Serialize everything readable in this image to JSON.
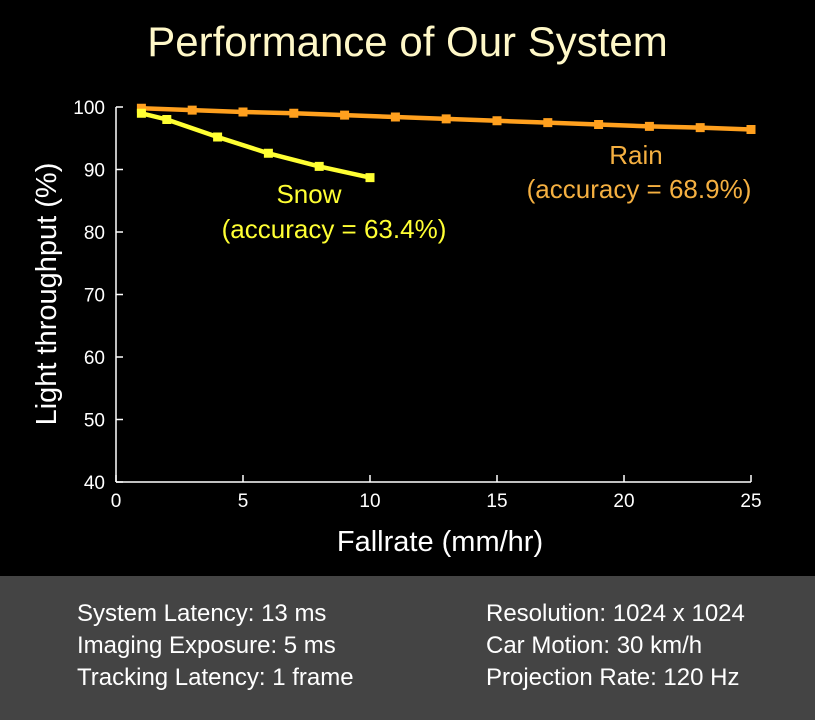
{
  "title": "Performance of Our System",
  "colors": {
    "background": "#000000",
    "title": "#fff8c8",
    "axis": "#ffffff",
    "rain": "#ffa01e",
    "rain_label": "#f5b041",
    "snow": "#ffff33",
    "footer_bg": "#444444",
    "footer_text": "#ffffff"
  },
  "chart_data": {
    "type": "line",
    "title": "Performance of Our System",
    "xlabel": "Fallrate (mm/hr)",
    "ylabel": "Light throughput (%)",
    "xlim": [
      0,
      25
    ],
    "ylim": [
      40,
      100
    ],
    "xticks": [
      0,
      5,
      10,
      15,
      20,
      25
    ],
    "yticks": [
      40,
      50,
      60,
      70,
      80,
      90,
      100
    ],
    "grid": false,
    "legend": "none",
    "series": [
      {
        "name": "Rain",
        "annotation": "(accuracy = 68.9%)",
        "x": [
          1,
          3,
          5,
          7,
          9,
          11,
          13,
          15,
          17,
          19,
          21,
          23,
          25
        ],
        "y": [
          99.8,
          99.5,
          99.2,
          99.0,
          98.7,
          98.4,
          98.1,
          97.8,
          97.5,
          97.2,
          96.9,
          96.7,
          96.4
        ]
      },
      {
        "name": "Snow",
        "annotation": "(accuracy = 63.4%)",
        "x": [
          1,
          2,
          4,
          6,
          8,
          10
        ],
        "y": [
          99.0,
          98.0,
          95.2,
          92.6,
          90.5,
          88.7
        ]
      }
    ]
  },
  "footer": {
    "left": [
      "System Latency: 13 ms",
      "Imaging Exposure: 5 ms",
      "Tracking Latency: 1 frame"
    ],
    "right": [
      "Resolution: 1024 x 1024",
      "Car Motion: 30 km/h",
      "Projection Rate: 120 Hz"
    ]
  }
}
